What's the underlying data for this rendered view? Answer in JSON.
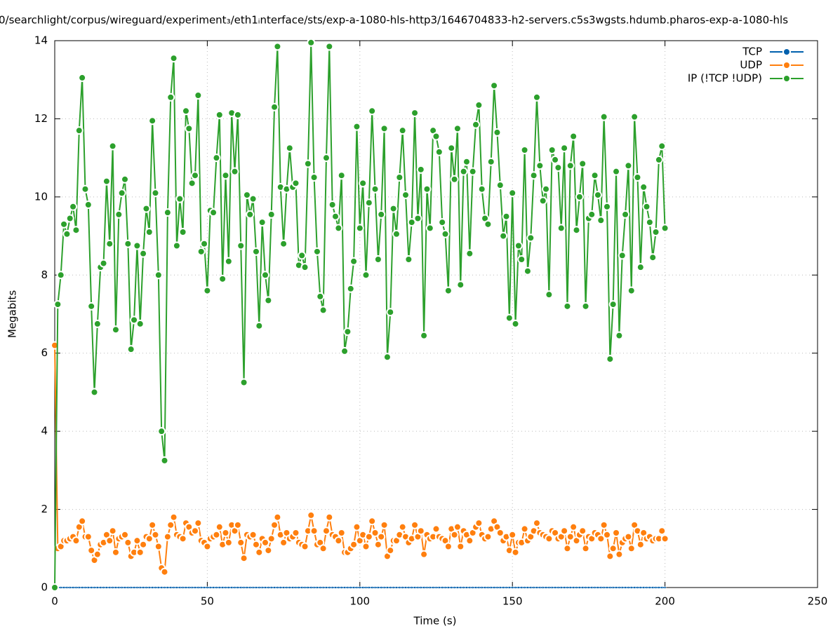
{
  "chart_data": {
    "type": "line",
    "title": "0/searchlight/corpus/wireguard/experiment₃/eth1ᵢnterface/sts/exp-a-1080-hls-http3/1646704833-h2-servers.c5s3wgsts.hdumb.pharos-exp-a-1080-hls",
    "x_label": "Time (s)",
    "y_label": "Megabits",
    "xlim": [
      0,
      250
    ],
    "xticks": [
      0,
      50,
      100,
      150,
      200,
      250
    ],
    "ylim": [
      0,
      14
    ],
    "yticks": [
      0,
      2,
      4,
      6,
      8,
      10,
      12,
      14
    ],
    "grid": true,
    "legend": "top-right",
    "x": [
      0,
      1,
      2,
      3,
      4,
      5,
      6,
      7,
      8,
      9,
      10,
      11,
      12,
      13,
      14,
      15,
      16,
      17,
      18,
      19,
      20,
      21,
      22,
      23,
      24,
      25,
      26,
      27,
      28,
      29,
      30,
      31,
      32,
      33,
      34,
      35,
      36,
      37,
      38,
      39,
      40,
      41,
      42,
      43,
      44,
      45,
      46,
      47,
      48,
      49,
      50,
      51,
      52,
      53,
      54,
      55,
      56,
      57,
      58,
      59,
      60,
      61,
      62,
      63,
      64,
      65,
      66,
      67,
      68,
      69,
      70,
      71,
      72,
      73,
      74,
      75,
      76,
      77,
      78,
      79,
      80,
      81,
      82,
      83,
      84,
      85,
      86,
      87,
      88,
      89,
      90,
      91,
      92,
      93,
      94,
      95,
      96,
      97,
      98,
      99,
      100,
      101,
      102,
      103,
      104,
      105,
      106,
      107,
      108,
      109,
      110,
      111,
      112,
      113,
      114,
      115,
      116,
      117,
      118,
      119,
      120,
      121,
      122,
      123,
      124,
      125,
      126,
      127,
      128,
      129,
      130,
      131,
      132,
      133,
      134,
      135,
      136,
      137,
      138,
      139,
      140,
      141,
      142,
      143,
      144,
      145,
      146,
      147,
      148,
      149,
      150,
      151,
      152,
      153,
      154,
      155,
      156,
      157,
      158,
      159,
      160,
      161,
      162,
      163,
      164,
      165,
      166,
      167,
      168,
      169,
      170,
      171,
      172,
      173,
      174,
      175,
      176,
      177,
      178,
      179,
      180,
      181,
      182,
      183,
      184,
      185,
      186,
      187,
      188,
      189,
      190,
      191,
      192,
      193,
      194,
      195,
      196,
      197,
      198,
      199,
      200
    ],
    "series": [
      {
        "name": "TCP",
        "color": "#0060ad",
        "values": [
          0,
          0,
          0,
          0,
          0,
          0,
          0,
          0,
          0,
          0,
          0,
          0,
          0,
          0,
          0,
          0,
          0,
          0,
          0,
          0,
          0,
          0,
          0,
          0,
          0,
          0,
          0,
          0,
          0,
          0,
          0,
          0,
          0,
          0,
          0,
          0,
          0,
          0,
          0,
          0,
          0,
          0,
          0,
          0,
          0,
          0,
          0,
          0,
          0,
          0,
          0,
          0,
          0,
          0,
          0,
          0,
          0,
          0,
          0,
          0,
          0,
          0,
          0,
          0,
          0,
          0,
          0,
          0,
          0,
          0,
          0,
          0,
          0,
          0,
          0,
          0,
          0,
          0,
          0,
          0,
          0,
          0,
          0,
          0,
          0,
          0,
          0,
          0,
          0,
          0,
          0,
          0,
          0,
          0,
          0,
          0,
          0,
          0,
          0,
          0,
          0,
          0,
          0,
          0,
          0,
          0,
          0,
          0,
          0,
          0,
          0,
          0,
          0,
          0,
          0,
          0,
          0,
          0,
          0,
          0,
          0,
          0,
          0,
          0,
          0,
          0,
          0,
          0,
          0,
          0,
          0,
          0,
          0,
          0,
          0,
          0,
          0,
          0,
          0,
          0,
          0,
          0,
          0,
          0,
          0,
          0,
          0,
          0,
          0,
          0,
          0,
          0,
          0,
          0,
          0,
          0,
          0,
          0,
          0,
          0,
          0,
          0,
          0,
          0,
          0,
          0,
          0,
          0,
          0,
          0,
          0,
          0,
          0,
          0,
          0,
          0,
          0,
          0,
          0,
          0,
          0,
          0,
          0,
          0,
          0,
          0,
          0,
          0,
          0,
          0,
          0,
          0,
          0,
          0,
          0,
          0,
          0,
          0,
          0,
          0,
          0
        ]
      },
      {
        "name": "UDP",
        "color": "#ff7f0e",
        "values": [
          6.2,
          1.0,
          1.05,
          1.2,
          1.2,
          1.25,
          1.3,
          1.2,
          1.55,
          1.7,
          1.3,
          1.3,
          0.95,
          0.7,
          0.85,
          1.1,
          1.15,
          1.35,
          1.2,
          1.45,
          0.9,
          1.25,
          1.3,
          1.35,
          1.15,
          0.8,
          0.9,
          1.2,
          0.9,
          1.1,
          1.3,
          1.25,
          1.6,
          1.35,
          1.05,
          0.5,
          0.4,
          1.3,
          1.6,
          1.8,
          1.35,
          1.3,
          1.25,
          1.65,
          1.55,
          1.4,
          1.45,
          1.65,
          1.2,
          1.15,
          1.05,
          1.25,
          1.3,
          1.35,
          1.55,
          1.1,
          1.4,
          1.15,
          1.6,
          1.45,
          1.6,
          1.15,
          0.75,
          1.35,
          1.3,
          1.35,
          1.1,
          0.9,
          1.25,
          1.15,
          0.95,
          1.25,
          1.6,
          1.8,
          1.35,
          1.15,
          1.4,
          1.25,
          1.3,
          1.4,
          1.15,
          1.1,
          1.05,
          1.45,
          1.85,
          1.45,
          1.1,
          1.15,
          1.0,
          1.45,
          1.8,
          1.35,
          1.3,
          1.2,
          1.4,
          0.9,
          0.9,
          1.0,
          1.1,
          1.55,
          1.2,
          1.35,
          1.05,
          1.3,
          1.7,
          1.4,
          1.1,
          1.3,
          1.6,
          0.8,
          0.95,
          1.2,
          1.2,
          1.35,
          1.55,
          1.3,
          1.15,
          1.25,
          1.6,
          1.3,
          1.45,
          0.85,
          1.35,
          1.25,
          1.3,
          1.5,
          1.3,
          1.25,
          1.2,
          1.05,
          1.5,
          1.35,
          1.55,
          1.05,
          1.45,
          1.35,
          1.2,
          1.4,
          1.55,
          1.65,
          1.35,
          1.25,
          1.3,
          1.5,
          1.7,
          1.55,
          1.4,
          1.2,
          1.3,
          0.95,
          1.35,
          0.9,
          1.15,
          1.15,
          1.5,
          1.2,
          1.3,
          1.45,
          1.65,
          1.4,
          1.35,
          1.3,
          1.25,
          1.45,
          1.4,
          1.25,
          1.3,
          1.45,
          1.0,
          1.3,
          1.55,
          1.2,
          1.35,
          1.45,
          1.0,
          1.3,
          1.25,
          1.4,
          1.35,
          1.25,
          1.6,
          1.35,
          0.8,
          1.0,
          1.4,
          0.85,
          1.15,
          1.25,
          1.3,
          1.0,
          1.6,
          1.45,
          1.1,
          1.4,
          1.25,
          1.3,
          1.2,
          1.25,
          1.25,
          1.45,
          1.25
        ]
      },
      {
        "name": "IP (!TCP  !UDP)",
        "color": "#2ca02c",
        "values": [
          0,
          7.25,
          8.0,
          9.3,
          9.05,
          9.45,
          9.75,
          9.15,
          11.7,
          13.05,
          10.2,
          9.8,
          7.2,
          5.0,
          6.75,
          8.2,
          8.3,
          10.4,
          8.8,
          11.3,
          6.6,
          9.55,
          10.1,
          10.45,
          8.8,
          6.1,
          6.85,
          8.75,
          6.75,
          8.55,
          9.7,
          9.1,
          11.95,
          10.1,
          8.0,
          4.0,
          3.25,
          9.6,
          12.55,
          13.55,
          8.75,
          9.95,
          9.1,
          12.2,
          11.75,
          10.35,
          10.55,
          12.6,
          8.6,
          8.8,
          7.6,
          9.65,
          9.6,
          11.0,
          12.1,
          7.9,
          10.55,
          8.35,
          12.15,
          10.65,
          12.1,
          8.75,
          5.25,
          10.05,
          9.55,
          9.95,
          8.6,
          6.7,
          9.35,
          8.0,
          7.35,
          9.55,
          12.3,
          13.85,
          10.25,
          8.8,
          10.2,
          11.25,
          10.25,
          10.35,
          8.25,
          8.5,
          8.2,
          10.85,
          13.95,
          10.5,
          8.6,
          7.45,
          7.1,
          11.0,
          13.85,
          9.8,
          9.5,
          9.2,
          10.55,
          6.05,
          6.55,
          7.65,
          8.35,
          11.8,
          9.2,
          10.35,
          8.0,
          9.85,
          12.2,
          10.2,
          8.4,
          9.55,
          11.75,
          5.9,
          7.05,
          9.7,
          9.05,
          10.5,
          11.7,
          10.05,
          8.4,
          9.35,
          12.15,
          9.45,
          10.7,
          6.45,
          10.2,
          9.2,
          11.7,
          11.55,
          11.15,
          9.35,
          9.05,
          7.6,
          11.25,
          10.45,
          11.75,
          7.75,
          10.65,
          10.9,
          8.55,
          10.65,
          11.85,
          12.35,
          10.2,
          9.45,
          9.3,
          10.9,
          12.85,
          11.65,
          10.3,
          9.0,
          9.5,
          6.9,
          10.1,
          6.75,
          8.75,
          8.4,
          11.2,
          8.1,
          8.95,
          10.55,
          12.55,
          10.8,
          9.9,
          10.2,
          7.5,
          11.2,
          10.95,
          10.75,
          9.2,
          11.25,
          7.2,
          10.8,
          11.55,
          9.15,
          10.0,
          10.85,
          7.2,
          9.45,
          9.55,
          10.55,
          10.05,
          9.4,
          12.05,
          9.75,
          5.85,
          7.25,
          10.65,
          6.45,
          8.5,
          9.55,
          10.8,
          7.6,
          12.05,
          10.5,
          8.2,
          10.25,
          9.75,
          9.35,
          8.45,
          9.1,
          10.95,
          11.3,
          9.2
        ]
      }
    ]
  }
}
